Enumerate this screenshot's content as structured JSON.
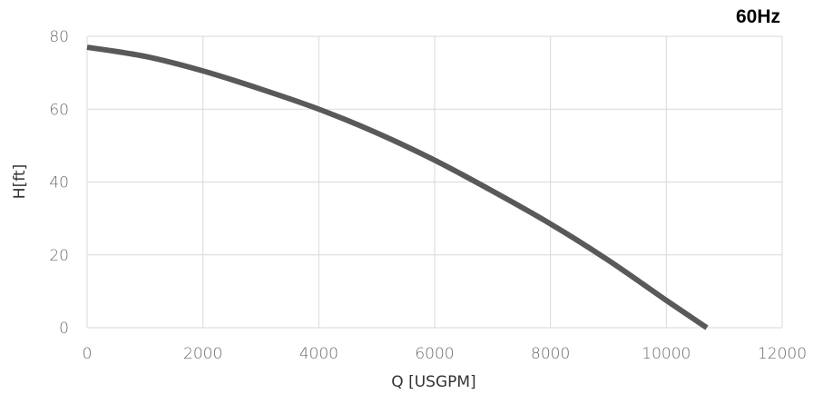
{
  "chart_data": {
    "type": "line",
    "badge": "60Hz",
    "xlabel": "Q [USGPM]",
    "ylabel": "H[ft]",
    "xlim": [
      0,
      12000
    ],
    "ylim": [
      0,
      80
    ],
    "x_ticks": [
      0,
      2000,
      4000,
      6000,
      8000,
      10000,
      12000
    ],
    "y_ticks": [
      0,
      20,
      40,
      60,
      80
    ],
    "grid": true,
    "series": [
      {
        "color": "#595959",
        "x": [
          0,
          1000,
          2000,
          3000,
          4000,
          5000,
          6000,
          7000,
          8000,
          9000,
          10000,
          10700
        ],
        "y": [
          77,
          74.5,
          70.5,
          65.5,
          60,
          53.5,
          46,
          37.5,
          28.5,
          18.5,
          7.5,
          0
        ]
      }
    ]
  }
}
